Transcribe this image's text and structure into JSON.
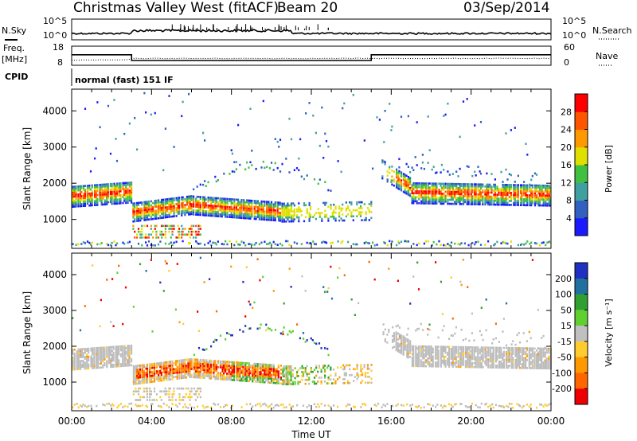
{
  "header": {
    "title": "Christmas Valley West (fitACF)",
    "beam": "Beam 20",
    "date": "03/Sep/2014"
  },
  "side_labels": {
    "nsky": "N.Sky",
    "nsearch": "N.Search",
    "freq": "Freq.",
    "freq_unit": "[MHz]",
    "nave": "Nave",
    "cpid": "CPID",
    "cpid_value": "normal (fast) 151 IF"
  },
  "noise_panel": {
    "left_ticks": [
      "10^5",
      "10^0"
    ],
    "right_ticks": [
      "10^5",
      "10^0"
    ]
  },
  "freq_panel": {
    "left_ticks": [
      "18",
      "8"
    ],
    "right_ticks": [
      "60",
      "0"
    ],
    "freq_steps": [
      {
        "t": 0.0,
        "f": 13.5
      },
      {
        "t": 3.0,
        "f": 10.5
      },
      {
        "t": 15.0,
        "f": 13.5
      },
      {
        "t": 24.0,
        "f": 13.5
      }
    ]
  },
  "chart_data": [
    {
      "type": "heatmap",
      "name": "power",
      "ylabel": "Slant Range [km]",
      "xlabel": "Time UT",
      "xlim": [
        0,
        24
      ],
      "ylim": [
        200,
        4600
      ],
      "yticks": [
        "1000",
        "2000",
        "3000",
        "4000"
      ],
      "colorbar_label": "Power [dB]",
      "colorbar_ticks": [
        "4",
        "8",
        "12",
        "16",
        "20",
        "24",
        "28"
      ],
      "colorbar_colors": [
        "#1a1aff",
        "#3060c0",
        "#40a0a0",
        "#40c040",
        "#e0e000",
        "#ff9900",
        "#ff5500",
        "#ff0000"
      ]
    },
    {
      "type": "heatmap",
      "name": "velocity",
      "ylabel": "Slant Range [km]",
      "xlabel": "Time UT",
      "xlim": [
        0,
        24
      ],
      "ylim": [
        200,
        4600
      ],
      "yticks": [
        "1000",
        "2000",
        "3000",
        "4000"
      ],
      "xticks": [
        "00:00",
        "04:00",
        "08:00",
        "12:00",
        "16:00",
        "20:00",
        "00:00"
      ],
      "colorbar_label": "Velocity [m s⁻¹]",
      "colorbar_ticks": [
        "200",
        "100",
        "50",
        "15",
        "-15",
        "-50",
        "-100",
        "-200"
      ],
      "colorbar_colors": [
        "#2030c0",
        "#2070a0",
        "#30a030",
        "#60d030",
        "#c0c0c0",
        "#ffcc30",
        "#ff9900",
        "#ff6600",
        "#ee0000"
      ]
    }
  ],
  "colors": {
    "ground_scatter": "#bdbdbd"
  }
}
